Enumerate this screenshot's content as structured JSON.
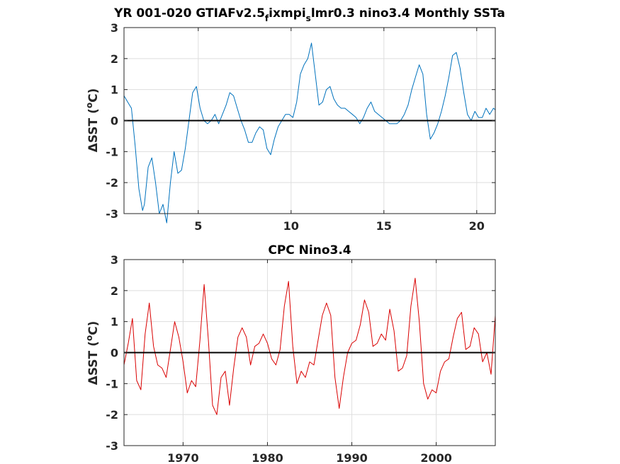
{
  "chart_data": [
    {
      "type": "line",
      "title": "YR 001-020 GTIAFv2.5",
      "title_sub_1": "f",
      "title_mid": "ixmpi",
      "title_sub_2": "s",
      "title_end": "lmr0.3 nino3.4 Monthly SSTa",
      "ylabel": "ΔSST (",
      "ylabel_sup": "o",
      "ylabel_end": "C)",
      "xlim": [
        1,
        21
      ],
      "ylim": [
        -3,
        3
      ],
      "x_ticks": [
        5,
        10,
        15,
        20
      ],
      "x_tick_labels": [
        "5",
        "10",
        "15",
        "20"
      ],
      "y_ticks": [
        -3,
        -2,
        -1,
        0,
        1,
        2,
        3
      ],
      "y_tick_labels": [
        "-3",
        "-2",
        "-1",
        "0",
        "1",
        "2",
        "3"
      ],
      "grid": true,
      "zero_line": true,
      "series": [
        {
          "color": "#0072BD",
          "x": [
            1.0,
            1.2,
            1.4,
            1.6,
            1.8,
            2.0,
            2.1,
            2.3,
            2.5,
            2.7,
            2.9,
            3.1,
            3.3,
            3.5,
            3.7,
            3.9,
            4.1,
            4.3,
            4.5,
            4.7,
            4.9,
            5.1,
            5.3,
            5.5,
            5.7,
            5.9,
            6.1,
            6.3,
            6.5,
            6.7,
            6.9,
            7.1,
            7.3,
            7.5,
            7.7,
            7.9,
            8.1,
            8.3,
            8.5,
            8.7,
            8.9,
            9.1,
            9.3,
            9.5,
            9.7,
            9.9,
            10.1,
            10.3,
            10.5,
            10.7,
            10.9,
            11.1,
            11.3,
            11.5,
            11.7,
            11.9,
            12.1,
            12.3,
            12.5,
            12.7,
            12.9,
            13.1,
            13.3,
            13.5,
            13.7,
            13.9,
            14.1,
            14.3,
            14.5,
            14.7,
            14.9,
            15.1,
            15.3,
            15.5,
            15.7,
            15.9,
            16.1,
            16.3,
            16.5,
            16.7,
            16.9,
            17.1,
            17.3,
            17.5,
            17.7,
            17.9,
            18.1,
            18.3,
            18.5,
            18.7,
            18.9,
            19.1,
            19.3,
            19.5,
            19.7,
            19.9,
            20.1,
            20.3,
            20.5,
            20.7,
            20.9,
            21.0
          ],
          "y": [
            0.8,
            0.6,
            0.4,
            -0.8,
            -2.2,
            -2.9,
            -2.7,
            -1.5,
            -1.2,
            -2.0,
            -3.0,
            -2.7,
            -3.3,
            -2.0,
            -1.0,
            -1.7,
            -1.6,
            -0.9,
            0.0,
            0.9,
            1.1,
            0.4,
            0.0,
            -0.1,
            0.0,
            0.2,
            -0.1,
            0.2,
            0.5,
            0.9,
            0.8,
            0.4,
            0.0,
            -0.3,
            -0.7,
            -0.7,
            -0.4,
            -0.2,
            -0.3,
            -0.9,
            -1.1,
            -0.6,
            -0.2,
            0.0,
            0.2,
            0.2,
            0.1,
            0.6,
            1.5,
            1.8,
            2.0,
            2.5,
            1.5,
            0.5,
            0.6,
            1.0,
            1.1,
            0.7,
            0.5,
            0.4,
            0.4,
            0.3,
            0.2,
            0.1,
            -0.1,
            0.1,
            0.4,
            0.6,
            0.3,
            0.2,
            0.1,
            0.0,
            -0.1,
            -0.1,
            -0.1,
            0.0,
            0.2,
            0.5,
            1.0,
            1.4,
            1.8,
            1.5,
            0.2,
            -0.6,
            -0.4,
            -0.1,
            0.3,
            0.8,
            1.4,
            2.1,
            2.2,
            1.7,
            0.9,
            0.2,
            0.0,
            0.3,
            0.1,
            0.1,
            0.4,
            0.2,
            0.4,
            0.35
          ]
        }
      ]
    },
    {
      "type": "line",
      "title": "CPC Nino3.4",
      "ylabel": "ΔSST (",
      "ylabel_sup": "o",
      "ylabel_end": "C)",
      "xlim": [
        1963,
        2007
      ],
      "ylim": [
        -3,
        3
      ],
      "x_ticks": [
        1970,
        1980,
        1990,
        2000
      ],
      "x_tick_labels": [
        "1970",
        "1980",
        "1990",
        "2000"
      ],
      "y_ticks": [
        -3,
        -2,
        -1,
        0,
        1,
        2,
        3
      ],
      "y_tick_labels": [
        "-3",
        "-2",
        "-1",
        "0",
        "1",
        "2",
        "3"
      ],
      "grid": true,
      "zero_line": true,
      "series": [
        {
          "color": "#D90000",
          "x": [
            1963.0,
            1963.5,
            1964.0,
            1964.5,
            1965.0,
            1965.5,
            1966.0,
            1966.5,
            1967.0,
            1967.5,
            1968.0,
            1968.5,
            1969.0,
            1969.5,
            1970.0,
            1970.5,
            1971.0,
            1971.5,
            1972.0,
            1972.5,
            1973.0,
            1973.5,
            1974.0,
            1974.5,
            1975.0,
            1975.5,
            1976.0,
            1976.5,
            1977.0,
            1977.5,
            1978.0,
            1978.5,
            1979.0,
            1979.5,
            1980.0,
            1980.5,
            1981.0,
            1981.5,
            1982.0,
            1982.5,
            1983.0,
            1983.5,
            1984.0,
            1984.5,
            1985.0,
            1985.5,
            1986.0,
            1986.5,
            1987.0,
            1987.5,
            1988.0,
            1988.5,
            1989.0,
            1989.5,
            1990.0,
            1990.5,
            1991.0,
            1991.5,
            1992.0,
            1992.5,
            1993.0,
            1993.5,
            1994.0,
            1994.5,
            1995.0,
            1995.5,
            1996.0,
            1996.5,
            1997.0,
            1997.5,
            1998.0,
            1998.5,
            1999.0,
            1999.5,
            2000.0,
            2000.5,
            2001.0,
            2001.5,
            2002.0,
            2002.5,
            2003.0,
            2003.5,
            2004.0,
            2004.5,
            2005.0,
            2005.5,
            2006.0,
            2006.5,
            2007.0
          ],
          "y": [
            -0.4,
            0.3,
            1.1,
            -0.9,
            -1.2,
            0.6,
            1.6,
            0.2,
            -0.4,
            -0.5,
            -0.8,
            0.1,
            1.0,
            0.5,
            -0.3,
            -1.3,
            -0.9,
            -1.1,
            0.4,
            2.2,
            0.4,
            -1.7,
            -2.0,
            -0.8,
            -0.6,
            -1.7,
            -0.5,
            0.5,
            0.8,
            0.5,
            -0.4,
            0.2,
            0.3,
            0.6,
            0.3,
            -0.2,
            -0.4,
            0.1,
            1.5,
            2.3,
            0.2,
            -1.0,
            -0.6,
            -0.8,
            -0.3,
            -0.4,
            0.4,
            1.2,
            1.6,
            1.2,
            -0.8,
            -1.8,
            -0.8,
            0.0,
            0.3,
            0.4,
            0.9,
            1.7,
            1.3,
            0.2,
            0.3,
            0.6,
            0.4,
            1.4,
            0.7,
            -0.6,
            -0.5,
            -0.1,
            1.5,
            2.4,
            1.0,
            -1.0,
            -1.5,
            -1.2,
            -1.3,
            -0.6,
            -0.3,
            -0.2,
            0.5,
            1.1,
            1.3,
            0.1,
            0.2,
            0.8,
            0.6,
            -0.3,
            0.0,
            -0.7,
            1.2
          ]
        }
      ]
    }
  ]
}
